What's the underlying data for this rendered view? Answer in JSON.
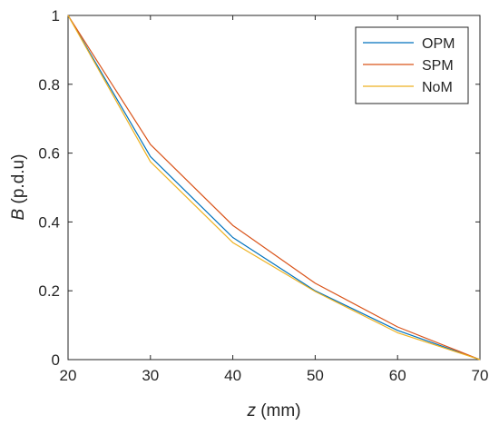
{
  "chart_data": {
    "type": "line",
    "xlabel_var": "z",
    "xlabel_unit": " (mm)",
    "ylabel_var": "B",
    "ylabel_unit": " (p.d.u)",
    "xlim": [
      20,
      70
    ],
    "ylim": [
      0,
      1
    ],
    "xticks": [
      20,
      30,
      40,
      50,
      60,
      70
    ],
    "yticks": [
      0,
      0.2,
      0.4,
      0.6,
      0.8,
      1
    ],
    "x": [
      20,
      30,
      40,
      50,
      60,
      70
    ],
    "grid": false,
    "legend_position": "top-right",
    "series": [
      {
        "name": "OPM",
        "color": "#0072BD",
        "values": [
          1.0,
          0.59,
          0.355,
          0.2,
          0.085,
          0.0
        ]
      },
      {
        "name": "SPM",
        "color": "#D95319",
        "values": [
          1.0,
          0.625,
          0.39,
          0.222,
          0.095,
          0.0
        ]
      },
      {
        "name": "NoM",
        "color": "#EDB120",
        "values": [
          1.0,
          0.575,
          0.34,
          0.198,
          0.078,
          0.0
        ]
      }
    ]
  }
}
